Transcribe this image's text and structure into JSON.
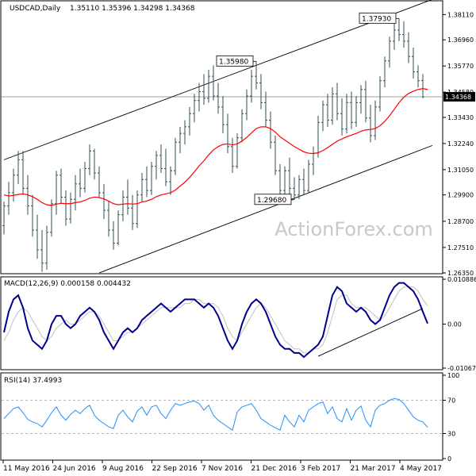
{
  "header": {
    "symbol": "USDCAD,Daily",
    "ohlc": "1.35110 1.35396 1.34298 1.34368"
  },
  "watermark": "ActionForex.com",
  "colors": {
    "background": "#ffffff",
    "frame": "#000000",
    "candle": "#2f4f4f",
    "ma": "#ff0000",
    "macd_main": "#00008b",
    "macd_signal": "#c0c0c0",
    "rsi": "#1e90ff",
    "channel": "#000000",
    "watermark": "#c8c8c8"
  },
  "chart_data": [
    {
      "type": "candlestick",
      "title": "USDCAD,Daily",
      "subtitle": "1.35110 1.35396 1.34298 1.34368",
      "x_tick_labels": [
        "11 May 2016",
        "24 Jun 2016",
        "9 Aug 2016",
        "22 Sep 2016",
        "7 Nov 2016",
        "21 Dec 2016",
        "3 Feb 2017",
        "21 Mar 2017",
        "4 May 2017"
      ],
      "y_ticks": [
        1.3811,
        1.3696,
        1.3577,
        1.3458,
        1.3343,
        1.3224,
        1.3105,
        1.299,
        1.287,
        1.2751,
        1.2635
      ],
      "y_tick_labels": [
        "1.38110",
        "1.36960",
        "1.35770",
        "1.34580",
        "1.33430",
        "1.32240",
        "1.31050",
        "1.29900",
        "1.28700",
        "1.27510",
        "1.26350"
      ],
      "ylim": [
        1.2635,
        1.387
      ],
      "last_price": 1.34368,
      "last_price_label": "1.34368",
      "annotations": [
        {
          "label": "1.35980",
          "value": 1.3598
        },
        {
          "label": "1.29680",
          "value": 1.2968
        },
        {
          "label": "1.37930",
          "value": 1.3793
        }
      ],
      "series": [
        {
          "type": "ohlc",
          "points": [
            [
              1.285,
              1.296,
              1.281,
              1.294
            ],
            [
              1.294,
              1.305,
              1.29,
              1.3
            ],
            [
              1.3,
              1.311,
              1.296,
              1.308
            ],
            [
              1.308,
              1.319,
              1.304,
              1.315
            ],
            [
              1.315,
              1.319,
              1.299,
              1.302
            ],
            [
              1.302,
              1.308,
              1.29,
              1.294
            ],
            [
              1.294,
              1.299,
              1.28,
              1.283
            ],
            [
              1.283,
              1.29,
              1.27,
              1.274
            ],
            [
              1.274,
              1.283,
              1.264,
              1.268
            ],
            [
              1.268,
              1.285,
              1.265,
              1.282
            ],
            [
              1.282,
              1.297,
              1.28,
              1.295
            ],
            [
              1.295,
              1.31,
              1.29,
              1.308
            ],
            [
              1.308,
              1.311,
              1.295,
              1.298
            ],
            [
              1.298,
              1.301,
              1.285,
              1.288
            ],
            [
              1.288,
              1.3,
              1.286,
              1.297
            ],
            [
              1.297,
              1.308,
              1.292,
              1.304
            ],
            [
              1.304,
              1.311,
              1.298,
              1.302
            ],
            [
              1.302,
              1.314,
              1.3,
              1.311
            ],
            [
              1.311,
              1.322,
              1.308,
              1.319
            ],
            [
              1.319,
              1.32,
              1.306,
              1.309
            ],
            [
              1.309,
              1.312,
              1.298,
              1.3
            ],
            [
              1.3,
              1.304,
              1.288,
              1.292
            ],
            [
              1.292,
              1.296,
              1.28,
              1.283
            ],
            [
              1.283,
              1.287,
              1.274,
              1.277
            ],
            [
              1.277,
              1.292,
              1.276,
              1.29
            ],
            [
              1.29,
              1.301,
              1.287,
              1.298
            ],
            [
              1.298,
              1.306,
              1.29,
              1.293
            ],
            [
              1.293,
              1.299,
              1.283,
              1.286
            ],
            [
              1.286,
              1.301,
              1.284,
              1.299
            ],
            [
              1.299,
              1.309,
              1.296,
              1.306
            ],
            [
              1.306,
              1.312,
              1.298,
              1.301
            ],
            [
              1.301,
              1.314,
              1.299,
              1.312
            ],
            [
              1.312,
              1.319,
              1.306,
              1.317
            ],
            [
              1.317,
              1.322,
              1.309,
              1.311
            ],
            [
              1.311,
              1.32,
              1.303,
              1.305
            ],
            [
              1.305,
              1.312,
              1.299,
              1.31
            ],
            [
              1.31,
              1.325,
              1.308,
              1.323
            ],
            [
              1.323,
              1.33,
              1.318,
              1.327
            ],
            [
              1.327,
              1.333,
              1.322,
              1.33
            ],
            [
              1.33,
              1.339,
              1.326,
              1.336
            ],
            [
              1.336,
              1.345,
              1.332,
              1.342
            ],
            [
              1.342,
              1.35,
              1.337,
              1.346
            ],
            [
              1.346,
              1.354,
              1.34,
              1.343
            ],
            [
              1.343,
              1.356,
              1.341,
              1.353
            ],
            [
              1.353,
              1.358,
              1.342,
              1.344
            ],
            [
              1.344,
              1.35,
              1.336,
              1.339
            ],
            [
              1.339,
              1.344,
              1.327,
              1.331
            ],
            [
              1.331,
              1.336,
              1.318,
              1.321
            ],
            [
              1.321,
              1.325,
              1.309,
              1.312
            ],
            [
              1.312,
              1.327,
              1.311,
              1.325
            ],
            [
              1.325,
              1.338,
              1.323,
              1.336
            ],
            [
              1.336,
              1.347,
              1.333,
              1.344
            ],
            [
              1.344,
              1.356,
              1.341,
              1.353
            ],
            [
              1.353,
              1.3598,
              1.347,
              1.35
            ],
            [
              1.35,
              1.354,
              1.338,
              1.341
            ],
            [
              1.341,
              1.346,
              1.33,
              1.333
            ],
            [
              1.333,
              1.337,
              1.32,
              1.323
            ],
            [
              1.323,
              1.326,
              1.308,
              1.31
            ],
            [
              1.31,
              1.313,
              1.299,
              1.301
            ],
            [
              1.301,
              1.312,
              1.298,
              1.31
            ],
            [
              1.31,
              1.316,
              1.299,
              1.302
            ],
            [
              1.302,
              1.307,
              1.2968,
              1.299
            ],
            [
              1.299,
              1.308,
              1.297,
              1.306
            ],
            [
              1.306,
              1.311,
              1.299,
              1.301
            ],
            [
              1.301,
              1.315,
              1.3,
              1.313
            ],
            [
              1.313,
              1.321,
              1.308,
              1.318
            ],
            [
              1.318,
              1.335,
              1.316,
              1.332
            ],
            [
              1.332,
              1.342,
              1.328,
              1.34
            ],
            [
              1.34,
              1.345,
              1.33,
              1.333
            ],
            [
              1.333,
              1.348,
              1.331,
              1.345
            ],
            [
              1.345,
              1.35,
              1.333,
              1.336
            ],
            [
              1.336,
              1.343,
              1.326,
              1.329
            ],
            [
              1.329,
              1.345,
              1.327,
              1.341
            ],
            [
              1.341,
              1.346,
              1.329,
              1.332
            ],
            [
              1.332,
              1.344,
              1.33,
              1.341
            ],
            [
              1.341,
              1.349,
              1.336,
              1.347
            ],
            [
              1.347,
              1.351,
              1.332,
              1.334
            ],
            [
              1.334,
              1.34,
              1.323,
              1.326
            ],
            [
              1.326,
              1.342,
              1.324,
              1.339
            ],
            [
              1.339,
              1.353,
              1.337,
              1.351
            ],
            [
              1.351,
              1.362,
              1.348,
              1.36
            ],
            [
              1.36,
              1.371,
              1.357,
              1.369
            ],
            [
              1.369,
              1.377,
              1.365,
              1.374
            ],
            [
              1.374,
              1.3793,
              1.369,
              1.372
            ],
            [
              1.372,
              1.378,
              1.366,
              1.369
            ],
            [
              1.369,
              1.373,
              1.359,
              1.362
            ],
            [
              1.362,
              1.366,
              1.352,
              1.355
            ],
            [
              1.355,
              1.358,
              1.348,
              1.351
            ],
            [
              1.3511,
              1.35396,
              1.34298,
              1.34368
            ]
          ]
        },
        {
          "name": "MA",
          "type": "line",
          "values": [
            1.299,
            1.2985,
            1.2988,
            1.2992,
            1.2995,
            1.299,
            1.2982,
            1.297,
            1.2955,
            1.2945,
            1.2942,
            1.2948,
            1.2952,
            1.295,
            1.295,
            1.2955,
            1.2958,
            1.2965,
            1.2975,
            1.298,
            1.2978,
            1.2972,
            1.2962,
            1.295,
            1.2945,
            1.2948,
            1.295,
            1.2948,
            1.295,
            1.2958,
            1.2962,
            1.297,
            1.2982,
            1.299,
            1.2995,
            1.3,
            1.3012,
            1.303,
            1.3048,
            1.307,
            1.3095,
            1.3122,
            1.3145,
            1.3172,
            1.3195,
            1.321,
            1.322,
            1.3222,
            1.3218,
            1.3222,
            1.3235,
            1.3252,
            1.3272,
            1.3292,
            1.33,
            1.33,
            1.3292,
            1.3276,
            1.3255,
            1.324,
            1.3225,
            1.321,
            1.3198,
            1.3186,
            1.318,
            1.3178,
            1.3182,
            1.3192,
            1.3205,
            1.322,
            1.3235,
            1.3245,
            1.3255,
            1.3262,
            1.327,
            1.328,
            1.3286,
            1.3288,
            1.3292,
            1.3305,
            1.3325,
            1.335,
            1.338,
            1.341,
            1.3435,
            1.3452,
            1.3462,
            1.347,
            1.3474,
            1.347
          ]
        }
      ],
      "channel_lines": [
        {
          "name": "upper",
          "from": [
            0,
            1.315
          ],
          "to": [
            90,
            1.388
          ]
        },
        {
          "name": "lower",
          "from": [
            20,
            1.2635
          ],
          "to": [
            90,
            1.3215
          ]
        }
      ]
    },
    {
      "type": "line",
      "title": "MACD(12,26,9) 0.000158 0.004432",
      "y_tick_labels": [
        "0.010886",
        "0.00",
        "-0.010676"
      ],
      "ylim": [
        -0.010676,
        0.010886
      ],
      "series": [
        {
          "type": "line",
          "values": [
            -0.002,
            0.003,
            0.006,
            0.007,
            0.004,
            -0.001,
            -0.004,
            -0.005,
            -0.006,
            -0.004,
            0.0,
            0.002,
            0.002,
            0.0,
            -0.001,
            0.0,
            0.002,
            0.003,
            0.004,
            0.003,
            0.001,
            -0.002,
            -0.004,
            -0.006,
            -0.004,
            -0.002,
            -0.001,
            -0.002,
            -0.001,
            0.001,
            0.002,
            0.003,
            0.004,
            0.005,
            0.004,
            0.003,
            0.004,
            0.005,
            0.006,
            0.006,
            0.006,
            0.005,
            0.004,
            0.005,
            0.004,
            0.002,
            -0.001,
            -0.004,
            -0.006,
            -0.004,
            0.0,
            0.003,
            0.005,
            0.006,
            0.005,
            0.003,
            0.0,
            -0.003,
            -0.005,
            -0.006,
            -0.006,
            -0.007,
            -0.007,
            -0.008,
            -0.007,
            -0.006,
            -0.005,
            -0.003,
            0.002,
            0.007,
            0.009,
            0.008,
            0.005,
            0.004,
            0.003,
            0.004,
            0.003,
            0.001,
            0.0,
            0.001,
            0.004,
            0.007,
            0.009,
            0.01,
            0.01,
            0.009,
            0.008,
            0.006,
            0.003,
            0.000158
          ]
        },
        {
          "type": "line",
          "values": [
            -0.004,
            -0.002,
            0.001,
            0.003,
            0.004,
            0.003,
            0.001,
            -0.001,
            -0.003,
            -0.004,
            -0.003,
            -0.001,
            0.0,
            0.001,
            0.0,
            0.0,
            0.001,
            0.002,
            0.003,
            0.003,
            0.002,
            0.0,
            -0.002,
            -0.004,
            -0.004,
            -0.003,
            -0.002,
            -0.002,
            -0.001,
            0.0,
            0.001,
            0.002,
            0.003,
            0.004,
            0.004,
            0.004,
            0.004,
            0.004,
            0.005,
            0.005,
            0.006,
            0.006,
            0.005,
            0.005,
            0.005,
            0.004,
            0.002,
            -0.001,
            -0.003,
            -0.004,
            -0.002,
            0.0,
            0.002,
            0.004,
            0.005,
            0.004,
            0.002,
            0.0,
            -0.002,
            -0.004,
            -0.005,
            -0.006,
            -0.006,
            -0.007,
            -0.007,
            -0.006,
            -0.006,
            -0.005,
            -0.002,
            0.002,
            0.006,
            0.007,
            0.007,
            0.005,
            0.004,
            0.004,
            0.004,
            0.003,
            0.002,
            0.001,
            0.002,
            0.004,
            0.006,
            0.008,
            0.009,
            0.009,
            0.009,
            0.008,
            0.006,
            0.004432
          ]
        }
      ],
      "trendline": {
        "from": [
          66,
          -0.0078
        ],
        "to": [
          88,
          0.0038
        ]
      }
    },
    {
      "type": "line",
      "title": "RSI(14) 37.4993",
      "y_tick_labels": [
        "100",
        "70",
        "30",
        "0"
      ],
      "ylim": [
        0,
        100
      ],
      "levels": [
        70,
        30
      ],
      "series": [
        {
          "type": "line",
          "values": [
            48,
            54,
            60,
            62,
            55,
            47,
            44,
            42,
            38,
            46,
            55,
            62,
            52,
            46,
            53,
            58,
            54,
            60,
            64,
            52,
            46,
            42,
            38,
            36,
            52,
            58,
            50,
            44,
            57,
            62,
            52,
            62,
            64,
            54,
            48,
            58,
            66,
            64,
            66,
            68,
            69,
            66,
            58,
            64,
            52,
            46,
            42,
            38,
            34,
            56,
            62,
            64,
            66,
            58,
            48,
            44,
            40,
            37,
            34,
            52,
            44,
            38,
            52,
            44,
            58,
            62,
            66,
            68,
            54,
            62,
            48,
            44,
            60,
            46,
            58,
            63,
            46,
            38,
            58,
            64,
            66,
            70,
            72,
            71,
            66,
            58,
            50,
            46,
            44,
            37.4993
          ]
        }
      ]
    }
  ]
}
